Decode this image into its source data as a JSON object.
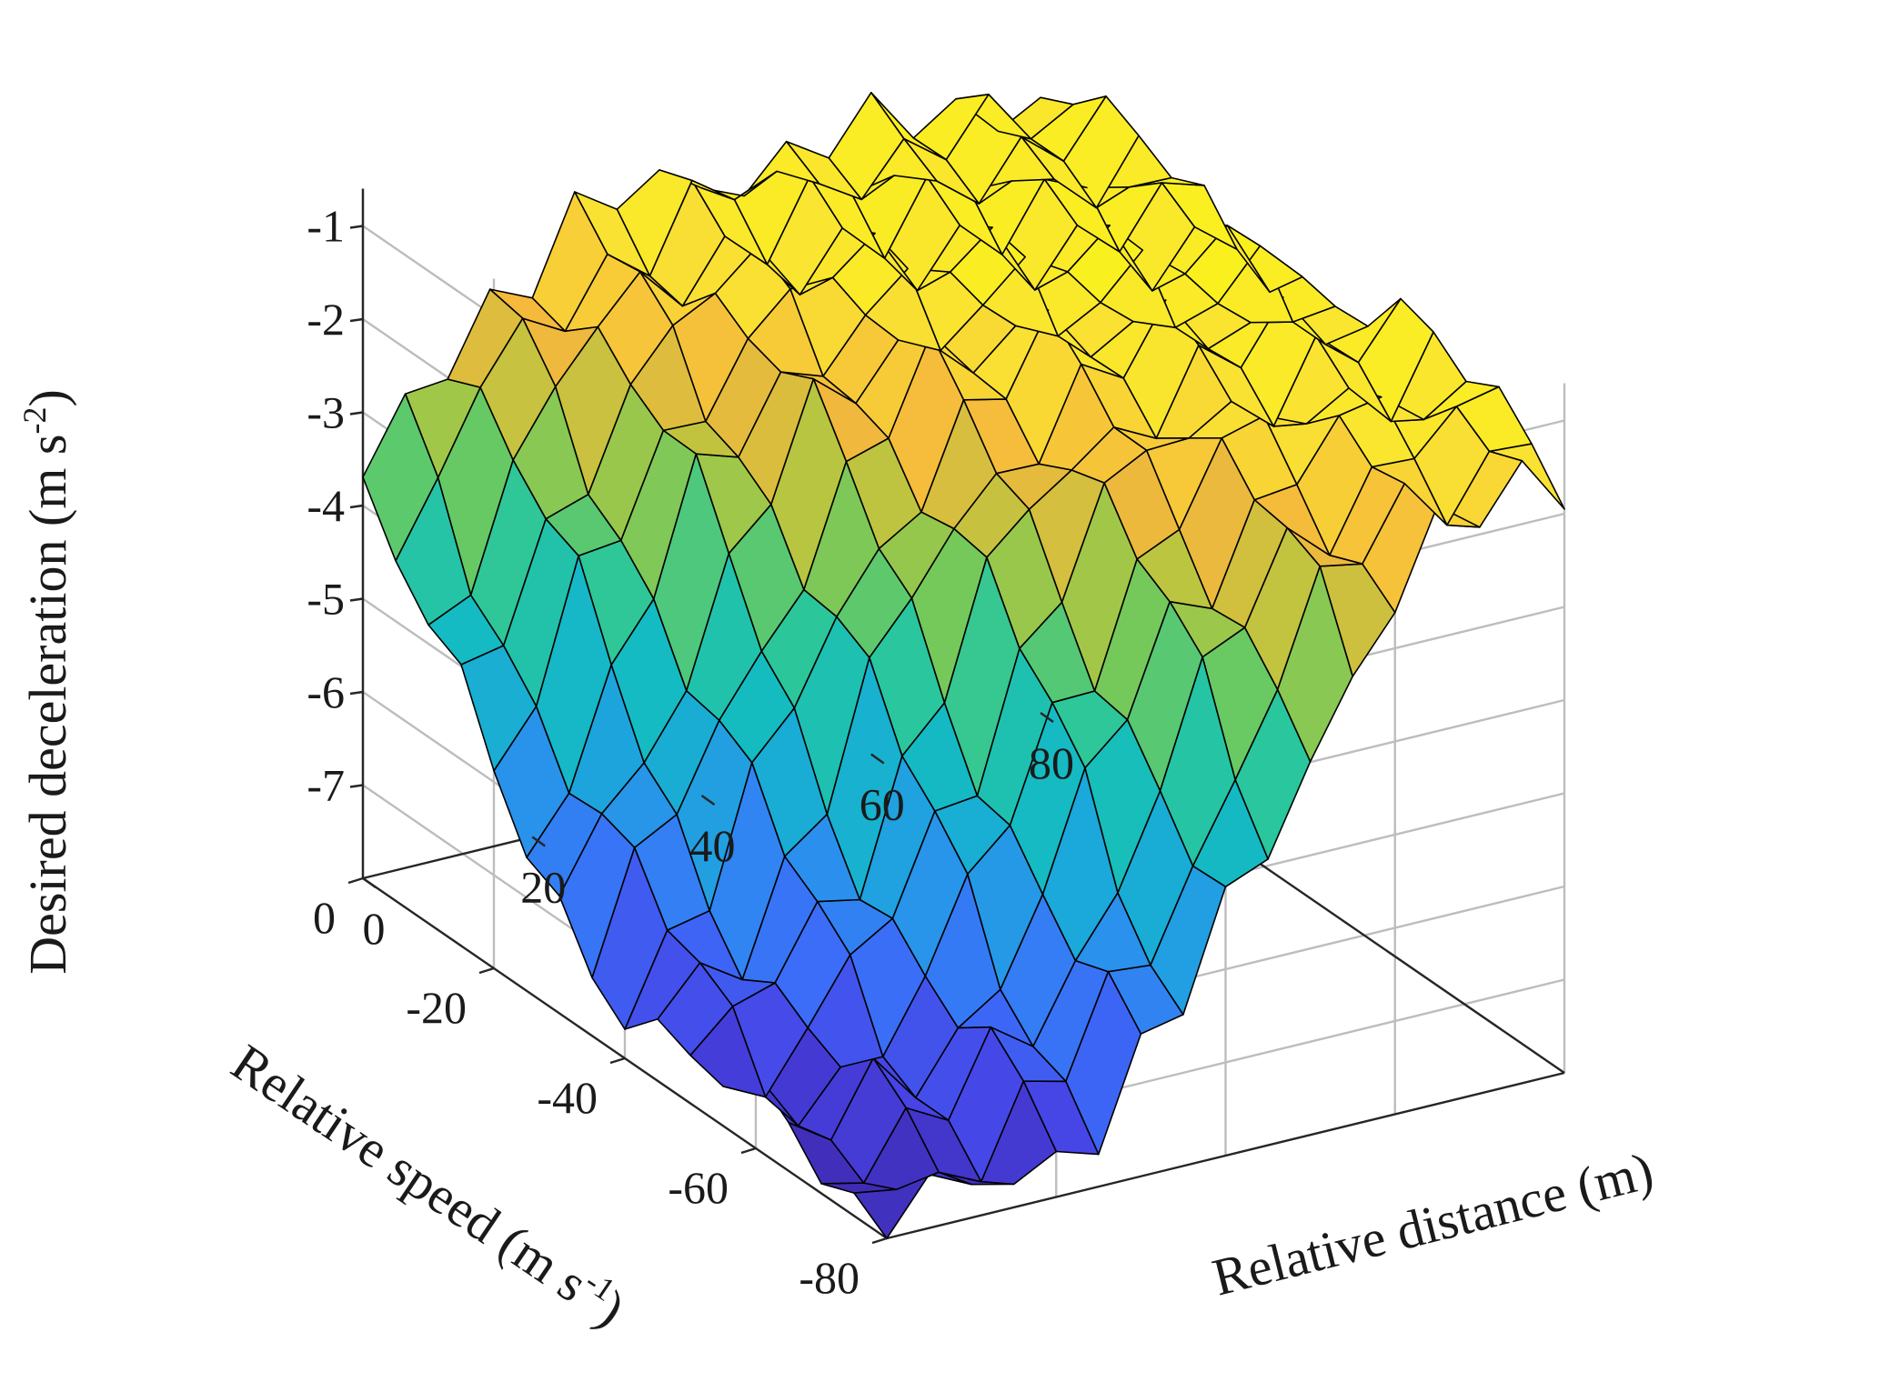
{
  "chart_data": {
    "type": "surface",
    "x": {
      "label": "Relative distance (m)",
      "ticks": [
        0,
        20,
        40,
        60,
        80
      ],
      "range": [
        0,
        80
      ]
    },
    "y": {
      "label_main": "Relative speed (m s",
      "label_sup": "-1",
      "label_end": ")",
      "ticks": [
        0,
        -20,
        -40,
        -60,
        -80
      ],
      "range": [
        -80,
        0
      ]
    },
    "z": {
      "label_main": "Desired deceleration (m s",
      "label_sup": "-2",
      "label_end": ")",
      "ticks": [
        -1,
        -2,
        -3,
        -4,
        -5,
        -6,
        -7
      ],
      "range": [
        -8,
        -0.6
      ]
    },
    "x_values": [
      0,
      5,
      10,
      15,
      20,
      25,
      30,
      35,
      40,
      45,
      50,
      55,
      60,
      65,
      70,
      75,
      80
    ],
    "y_values": [
      0,
      -5,
      -10,
      -15,
      -20,
      -25,
      -30,
      -35,
      -40,
      -45,
      -50,
      -55,
      -60,
      -65,
      -70,
      -75,
      -80
    ],
    "grid_on": true,
    "colormap": "parula",
    "colormap_stops": [
      "#3e26a8",
      "#4743e5",
      "#3b6cf8",
      "#2d8cf0",
      "#1aaad8",
      "#14bcc0",
      "#2cc79a",
      "#6cc95f",
      "#b5c640",
      "#f5b73c",
      "#fae332",
      "#f9fb0e"
    ],
    "edge_color": "#000000"
  }
}
